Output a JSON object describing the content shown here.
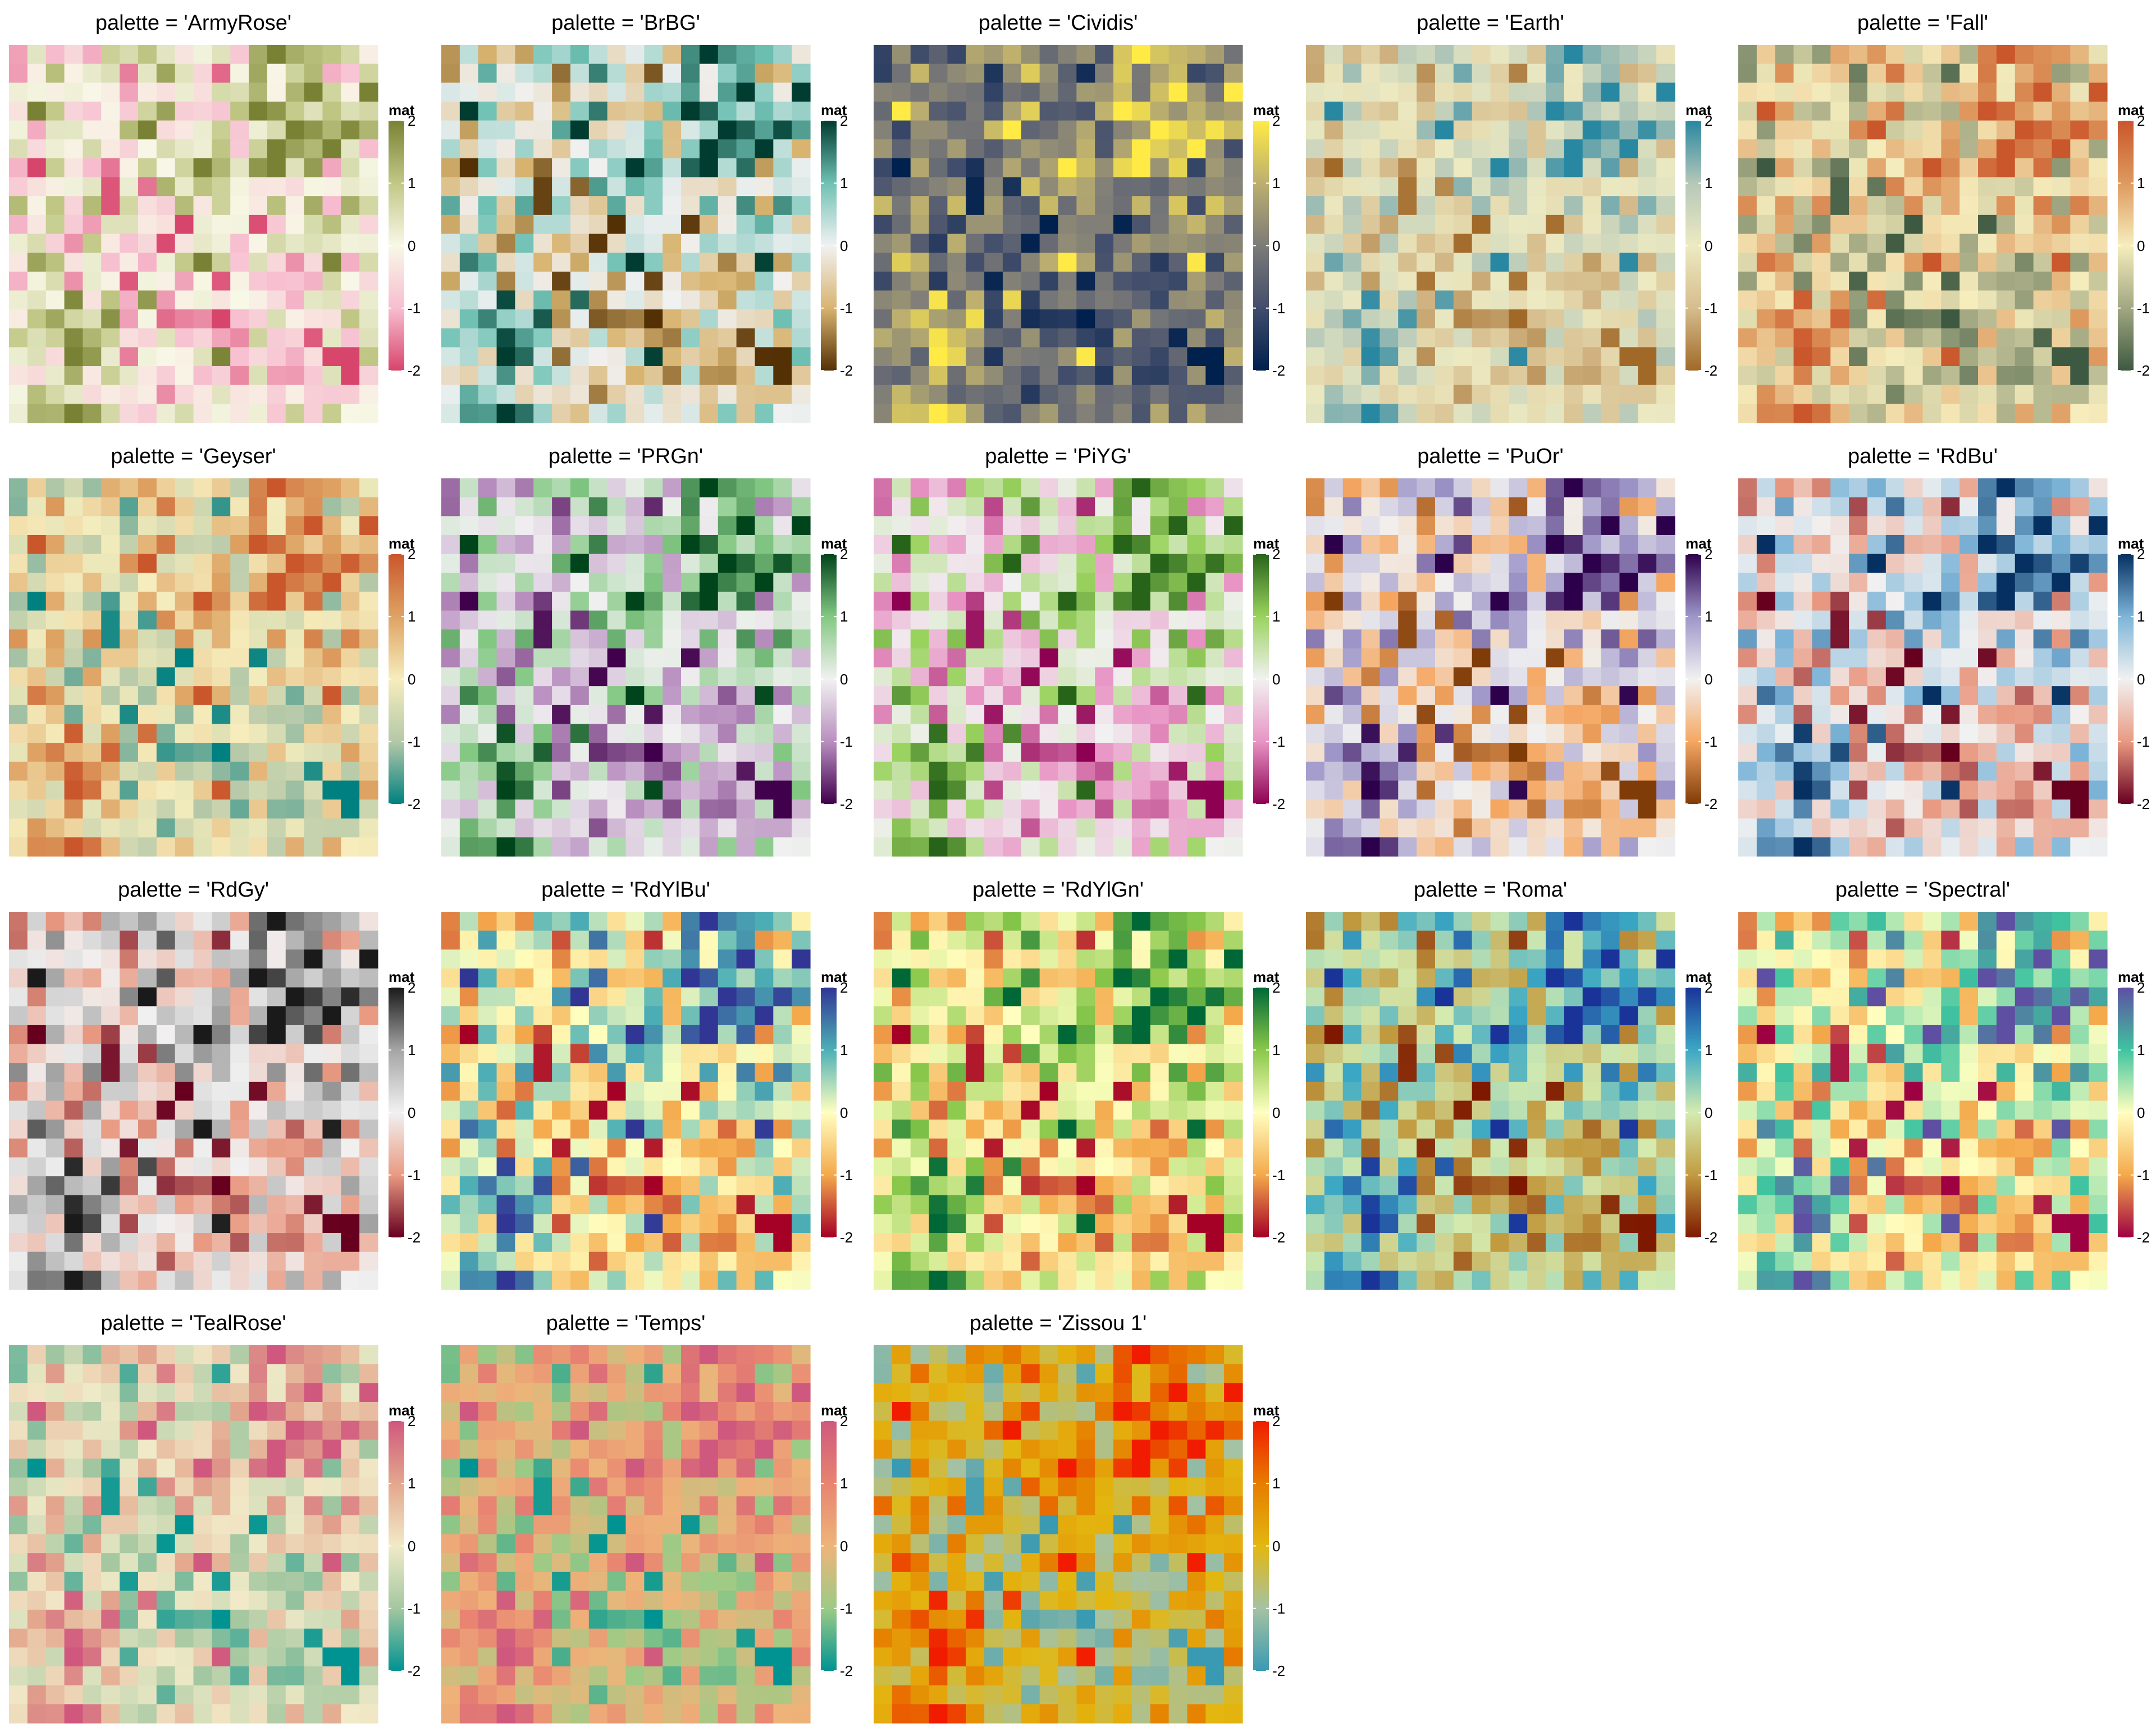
{
  "chart_data": {
    "type": "heatmap",
    "grid": {
      "rows": 20,
      "cols": 20,
      "seed": 123
    },
    "legend": {
      "title": "mat",
      "ticks": [
        2,
        1,
        0,
        -1,
        -2
      ],
      "tick_labels": [
        "2",
        "1",
        "0",
        "-1",
        "-2"
      ],
      "range": [
        -2,
        2
      ]
    },
    "panels": [
      {
        "title": "palette = 'ArmyRose'",
        "palette": "ArmyRose",
        "colors": [
          "#D8456C",
          "#F7BED0",
          "#F8F8E7",
          "#C1C886",
          "#798234"
        ]
      },
      {
        "title": "palette = 'BrBG'",
        "palette": "BrBG",
        "colors": [
          "#543005",
          "#D8B470",
          "#F1F1F1",
          "#6FC1B4",
          "#003C30"
        ]
      },
      {
        "title": "palette = 'Cividis'",
        "palette": "Cividis",
        "colors": [
          "#00204D",
          "#414D6B",
          "#7C7B78",
          "#BCAF6F",
          "#FFEA46"
        ]
      },
      {
        "title": "palette = 'Earth'",
        "palette": "Earth",
        "colors": [
          "#A16928",
          "#D6BD8D",
          "#EDEAC2",
          "#B5C8B8",
          "#2887A1"
        ]
      },
      {
        "title": "palette = 'Fall'",
        "palette": "Fall",
        "colors": [
          "#3D5941",
          "#A1A781",
          "#F6EDBD",
          "#DE9A5F",
          "#CA562C"
        ]
      },
      {
        "title": "palette = 'Geyser'",
        "palette": "Geyser",
        "colors": [
          "#008080",
          "#B4C8A8",
          "#F6EDBD",
          "#DEA363",
          "#CA562C"
        ]
      },
      {
        "title": "palette = 'PRGn'",
        "palette": "PRGn",
        "colors": [
          "#40004B",
          "#B98FC0",
          "#F1F1F1",
          "#83C883",
          "#00441B"
        ]
      },
      {
        "title": "palette = 'PiYG'",
        "palette": "PiYG",
        "colors": [
          "#8E0152",
          "#E894C4",
          "#F1F1F1",
          "#9BD35F",
          "#276419"
        ]
      },
      {
        "title": "palette = 'PuOr'",
        "palette": "PuOr",
        "colors": [
          "#7F3B08",
          "#F5A762",
          "#F1F1F1",
          "#9E96C8",
          "#2D004B"
        ]
      },
      {
        "title": "palette = 'RdBu'",
        "palette": "RdBu",
        "colors": [
          "#67001F",
          "#E99A82",
          "#F1F1F1",
          "#7DB5D8",
          "#053061"
        ]
      },
      {
        "title": "palette = 'RdGy'",
        "palette": "RdGy",
        "colors": [
          "#67001F",
          "#E99A82",
          "#F1F1F1",
          "#A5A5A5",
          "#1A1A1A"
        ]
      },
      {
        "title": "palette = 'RdYlBu'",
        "palette": "RdYlBu",
        "colors": [
          "#A50026",
          "#F4A94B",
          "#FFFFBF",
          "#4DB0B5",
          "#313695"
        ]
      },
      {
        "title": "palette = 'RdYlGn'",
        "palette": "RdYlGn",
        "colors": [
          "#A50026",
          "#F4A94B",
          "#FFFFBF",
          "#89C84A",
          "#006837"
        ]
      },
      {
        "title": "palette = 'Roma'",
        "palette": "Roma",
        "colors": [
          "#7E1900",
          "#C29B40",
          "#D4EBB0",
          "#3BA8C4",
          "#1A3399"
        ]
      },
      {
        "title": "palette = 'Spectral'",
        "palette": "Spectral",
        "colors": [
          "#9E0142",
          "#F4A94B",
          "#FFFFBF",
          "#3FC4A0",
          "#5E4FA2"
        ]
      },
      {
        "title": "palette = 'TealRose'",
        "palette": "TealRose",
        "colors": [
          "#009392",
          "#A3C7A0",
          "#F1EAC8",
          "#E3A78D",
          "#D0587E"
        ]
      },
      {
        "title": "palette = 'Temps'",
        "palette": "Temps",
        "colors": [
          "#009392",
          "#9CCB86",
          "#EEB479",
          "#E88471",
          "#CF597E"
        ]
      },
      {
        "title": "palette = 'Zissou 1'",
        "palette": "Zissou 1",
        "colors": [
          "#3A9AB2",
          "#A5C2A3",
          "#E3B710",
          "#E67D00",
          "#F11B00"
        ]
      }
    ]
  }
}
